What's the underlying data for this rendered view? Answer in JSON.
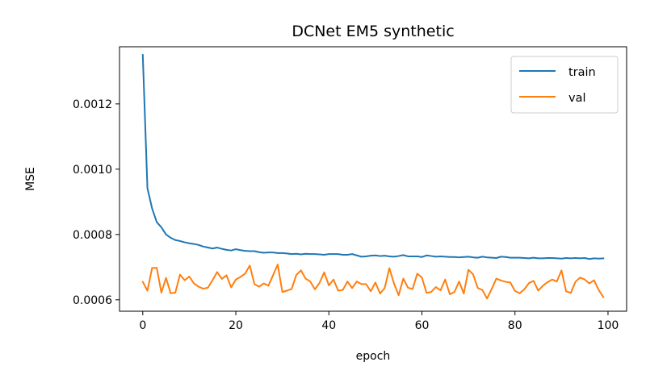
{
  "chart_data": {
    "type": "line",
    "title": "DCNet EM5 synthetic",
    "xlabel": "epoch",
    "ylabel": "MSE",
    "xlim": [
      -5,
      104
    ],
    "ylim": [
      0.000565,
      0.001375
    ],
    "xticks": [
      0,
      20,
      40,
      60,
      80,
      100
    ],
    "yticks": [
      0.0006,
      0.0008,
      0.001,
      0.0012
    ],
    "ytick_labels": [
      "0.0006",
      "0.0008",
      "0.0010",
      "0.0012"
    ],
    "grid": false,
    "legend_position": "top-right",
    "x": [
      0,
      1,
      2,
      3,
      4,
      5,
      6,
      7,
      8,
      9,
      10,
      11,
      12,
      13,
      14,
      15,
      16,
      17,
      18,
      19,
      20,
      21,
      22,
      23,
      24,
      25,
      26,
      27,
      28,
      29,
      30,
      31,
      32,
      33,
      34,
      35,
      36,
      37,
      38,
      39,
      40,
      41,
      42,
      43,
      44,
      45,
      46,
      47,
      48,
      49,
      50,
      51,
      52,
      53,
      54,
      55,
      56,
      57,
      58,
      59,
      60,
      61,
      62,
      63,
      64,
      65,
      66,
      67,
      68,
      69,
      70,
      71,
      72,
      73,
      74,
      75,
      76,
      77,
      78,
      79,
      80,
      81,
      82,
      83,
      84,
      85,
      86,
      87,
      88,
      89,
      90,
      91,
      92,
      93,
      94,
      95,
      96,
      97,
      98,
      99
    ],
    "series": [
      {
        "name": "train",
        "color": "#1f77b4",
        "values": [
          0.00135,
          0.000942,
          0.00088,
          0.000838,
          0.000822,
          0.0008,
          0.00079,
          0.000783,
          0.00078,
          0.000776,
          0.000773,
          0.000771,
          0.000768,
          0.000763,
          0.00076,
          0.000757,
          0.00076,
          0.000756,
          0.000753,
          0.000751,
          0.000755,
          0.000752,
          0.00075,
          0.000749,
          0.000749,
          0.000746,
          0.000744,
          0.000745,
          0.000745,
          0.000743,
          0.000743,
          0.000742,
          0.00074,
          0.000741,
          0.000739,
          0.000741,
          0.00074,
          0.00074,
          0.000739,
          0.000738,
          0.00074,
          0.00074,
          0.00074,
          0.000738,
          0.000738,
          0.00074,
          0.000736,
          0.000732,
          0.000733,
          0.000735,
          0.000736,
          0.000734,
          0.000735,
          0.000733,
          0.000732,
          0.000734,
          0.000737,
          0.000733,
          0.000733,
          0.000733,
          0.000731,
          0.000736,
          0.000734,
          0.000732,
          0.000733,
          0.000732,
          0.000731,
          0.000731,
          0.00073,
          0.000731,
          0.000732,
          0.00073,
          0.000729,
          0.000732,
          0.00073,
          0.000729,
          0.000728,
          0.000732,
          0.000731,
          0.000729,
          0.000729,
          0.000729,
          0.000728,
          0.000727,
          0.000729,
          0.000727,
          0.000727,
          0.000728,
          0.000728,
          0.000727,
          0.000726,
          0.000728,
          0.000727,
          0.000728,
          0.000727,
          0.000728,
          0.000725,
          0.000727,
          0.000726,
          0.000727
        ]
      },
      {
        "name": "val",
        "color": "#ff7f0e",
        "values": [
          0.000655,
          0.000628,
          0.000697,
          0.000698,
          0.000622,
          0.000667,
          0.00062,
          0.000622,
          0.000677,
          0.00066,
          0.000671,
          0.00065,
          0.00064,
          0.000634,
          0.000637,
          0.00066,
          0.000685,
          0.000664,
          0.000675,
          0.000638,
          0.000662,
          0.00067,
          0.00068,
          0.000705,
          0.000648,
          0.00064,
          0.00065,
          0.000643,
          0.000675,
          0.000708,
          0.000624,
          0.000628,
          0.000633,
          0.000676,
          0.00069,
          0.000665,
          0.000656,
          0.000632,
          0.000652,
          0.000684,
          0.000644,
          0.000662,
          0.000628,
          0.00063,
          0.000656,
          0.000636,
          0.000656,
          0.000648,
          0.000648,
          0.000626,
          0.000653,
          0.000619,
          0.000636,
          0.000697,
          0.00065,
          0.000614,
          0.000665,
          0.000637,
          0.000633,
          0.00068,
          0.000668,
          0.000621,
          0.000624,
          0.000639,
          0.000629,
          0.000662,
          0.000617,
          0.000624,
          0.000656,
          0.000619,
          0.000692,
          0.000678,
          0.000636,
          0.00063,
          0.000604,
          0.000633,
          0.000665,
          0.000659,
          0.000655,
          0.000653,
          0.000627,
          0.00062,
          0.000632,
          0.000651,
          0.000658,
          0.000628,
          0.000643,
          0.000654,
          0.000662,
          0.000656,
          0.00069,
          0.000626,
          0.000621,
          0.000655,
          0.000668,
          0.000662,
          0.00065,
          0.00066,
          0.00063,
          0.000608
        ]
      }
    ]
  }
}
